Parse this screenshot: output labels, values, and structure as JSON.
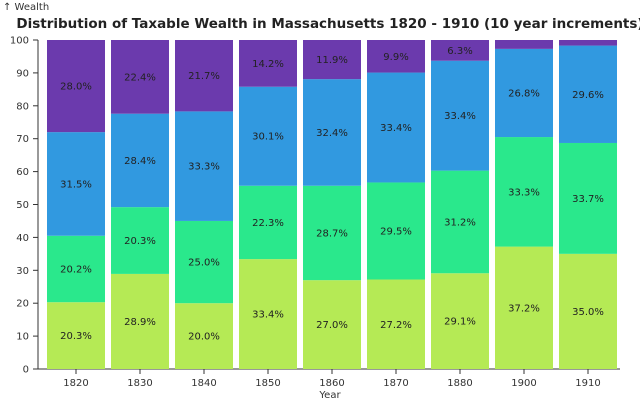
{
  "chart_data": {
    "type": "bar",
    "stacked": true,
    "title": "Distribution of Taxable Wealth in Massachusetts 1820 - 1910 (10 year increments)",
    "xlabel": "Year",
    "ylabel": "↑ Wealth",
    "ylim": [
      0,
      100
    ],
    "yticks": [
      "0",
      "10",
      "20",
      "30",
      "40",
      "50",
      "60",
      "70",
      "80",
      "90",
      "100"
    ],
    "categories": [
      "1820",
      "1830",
      "1840",
      "1850",
      "1860",
      "1870",
      "1880",
      "1900",
      "1910"
    ],
    "grid": false,
    "series": [
      {
        "color": "#b5ea55",
        "values": [
          20.3,
          28.9,
          20.0,
          33.4,
          27.0,
          27.2,
          29.1,
          37.2,
          35.0
        ],
        "labels": [
          "20.3%",
          "28.9%",
          "20.0%",
          "33.4%",
          "27.0%",
          "27.2%",
          "29.1%",
          "37.2%",
          "35.0%"
        ]
      },
      {
        "color": "#2ae88c",
        "values": [
          20.2,
          20.3,
          25.0,
          22.3,
          28.7,
          29.5,
          31.2,
          33.3,
          33.7
        ],
        "labels": [
          "20.2%",
          "20.3%",
          "25.0%",
          "22.3%",
          "28.7%",
          "29.5%",
          "31.2%",
          "33.3%",
          "33.7%"
        ]
      },
      {
        "color": "#3199e0",
        "values": [
          31.5,
          28.4,
          33.3,
          30.1,
          32.4,
          33.4,
          33.4,
          26.8,
          29.6
        ],
        "labels": [
          "31.5%",
          "28.4%",
          "33.3%",
          "30.1%",
          "32.4%",
          "33.4%",
          "33.4%",
          "26.8%",
          "29.6%"
        ]
      },
      {
        "color": "#6b3aad",
        "values": [
          28.0,
          22.4,
          21.7,
          14.2,
          11.9,
          9.9,
          6.3,
          2.7,
          1.7
        ],
        "labels": [
          "28.0%",
          "22.4%",
          "21.7%",
          "14.2%",
          "11.9%",
          "9.9%",
          "6.3%",
          "",
          ""
        ]
      }
    ]
  }
}
